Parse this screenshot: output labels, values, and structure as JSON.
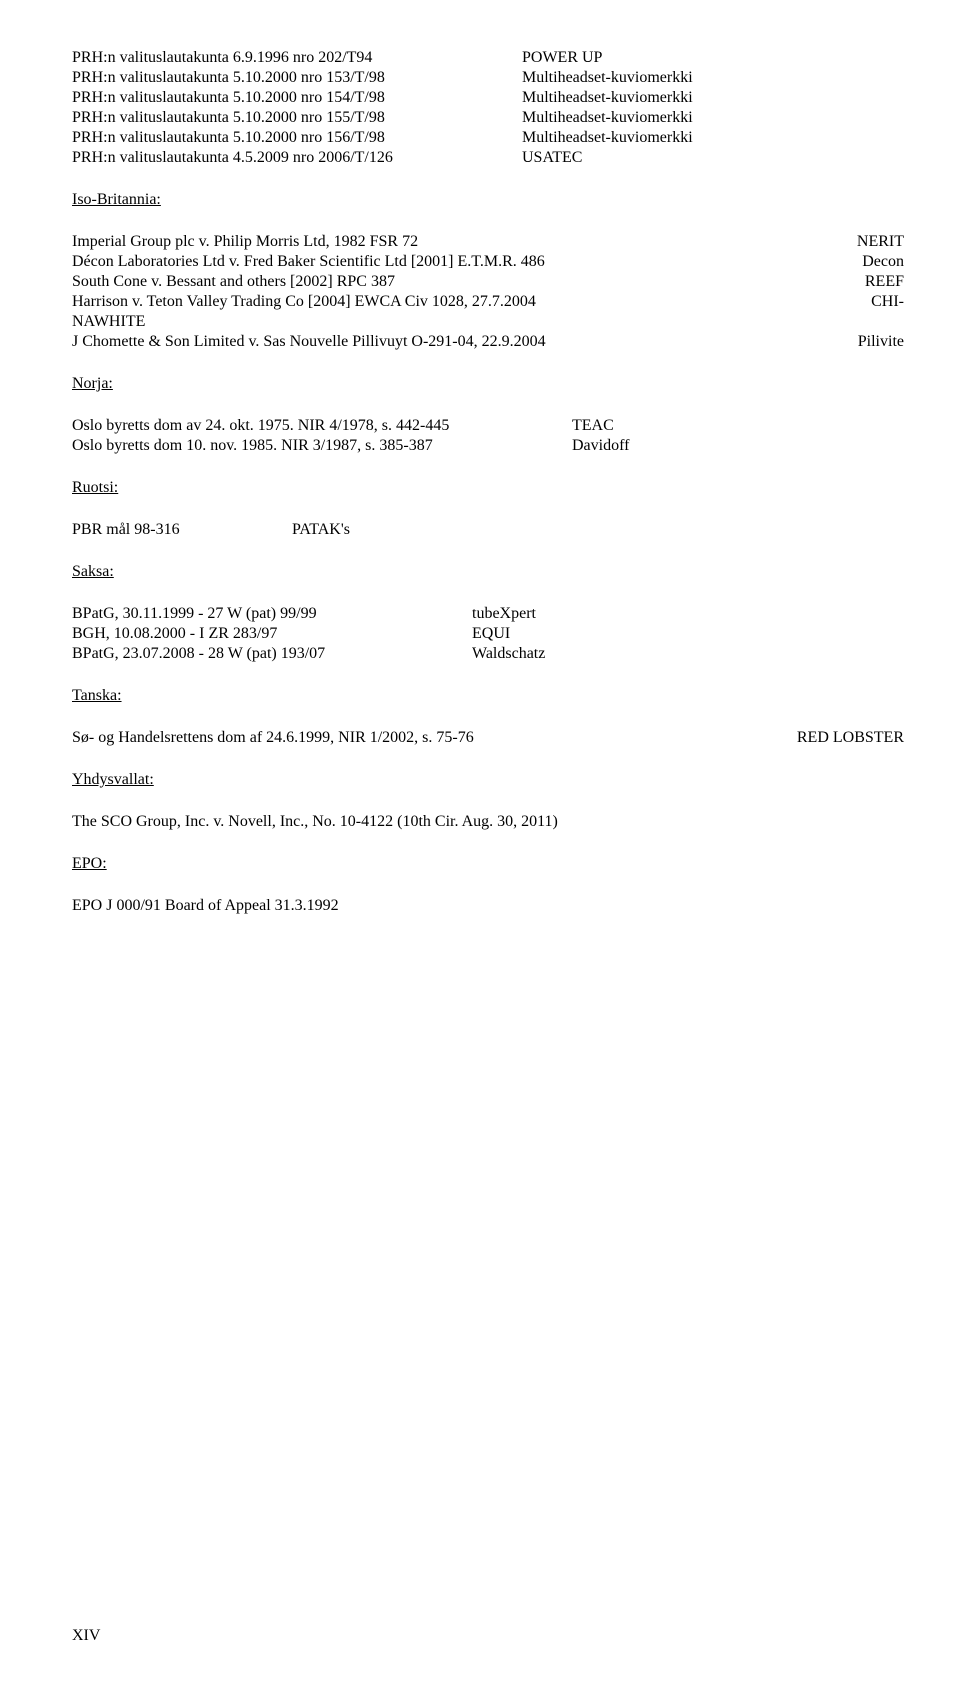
{
  "top_list": [
    {
      "l": "PRH:n valituslautakunta 6.9.1996 nro 202/T94",
      "r": "POWER UP"
    },
    {
      "l": "PRH:n valituslautakunta 5.10.2000 nro 153/T/98",
      "r": "Multiheadset-kuviomerkki"
    },
    {
      "l": "PRH:n valituslautakunta 5.10.2000 nro 154/T/98",
      "r": "Multiheadset-kuviomerkki"
    },
    {
      "l": "PRH:n valituslautakunta 5.10.2000 nro 155/T/98",
      "r": "Multiheadset-kuviomerkki"
    },
    {
      "l": "PRH:n valituslautakunta 5.10.2000 nro 156/T/98",
      "r": "Multiheadset-kuviomerkki"
    },
    {
      "l": "PRH:n valituslautakunta 4.5.2009 nro 2006/T/126",
      "r": "USATEC"
    }
  ],
  "gb_h": "Iso-Britannia:",
  "gb_rows": [
    {
      "l": "Imperial Group plc v. Philip Morris Ltd, 1982 FSR 72",
      "r": "NERIT"
    },
    {
      "l": "Décon Laboratories Ltd v. Fred Baker Scientific Ltd [2001] E.T.M.R. 486",
      "r": "Decon"
    },
    {
      "l": "South Cone v. Bessant and others [2002] RPC 387",
      "r": "REEF"
    },
    {
      "l": "Harrison v. Teton Valley Trading Co [2004] EWCA Civ 1028, 27.7.2004",
      "r": "CHI-"
    },
    {
      "l": "NAWHITE",
      "r": ""
    },
    {
      "l": "J Chomette & Son Limited v. Sas Nouvelle Pillivuyt O-291-04, 22.9.2004",
      "r": "Pilivite"
    }
  ],
  "norja_h": "Norja:",
  "norja_rows": [
    {
      "l": "Oslo byretts dom av 24. okt. 1975. NIR 4/1978, s. 442-445",
      "r": "TEAC"
    },
    {
      "l": "Oslo byretts dom 10. nov. 1985. NIR 3/1987, s. 385-387",
      "r": "Davidoff"
    }
  ],
  "ruotsi_h": "Ruotsi:",
  "pbr_l": "PBR mål 98-316",
  "pbr_r": "PATAK's",
  "saksa_h": "Saksa:",
  "de_rows": [
    {
      "l": "BPatG, 30.11.1999 - 27 W (pat) 99/99",
      "r": "tubeXpert"
    },
    {
      "l": "BGH, 10.08.2000 - I ZR 283/97",
      "r": "EQUI"
    },
    {
      "l": "BPatG, 23.07.2008 - 28 W (pat) 193/07",
      "r": "Waldschatz"
    }
  ],
  "tanska_h": "Tanska:",
  "dk_l": "Sø- og Handelsrettens dom af 24.6.1999, NIR 1/2002, s. 75-76",
  "dk_r": "RED LOBSTER",
  "us_h": "Yhdysvallat:",
  "us_line": "The SCO Group, Inc. v. Novell, Inc., No. 10-4122 (10th Cir. Aug. 30, 2011)",
  "epo_h": "EPO:",
  "epo_line": "EPO J 000/91 Board of Appeal 31.3.1992",
  "page": "XIV"
}
